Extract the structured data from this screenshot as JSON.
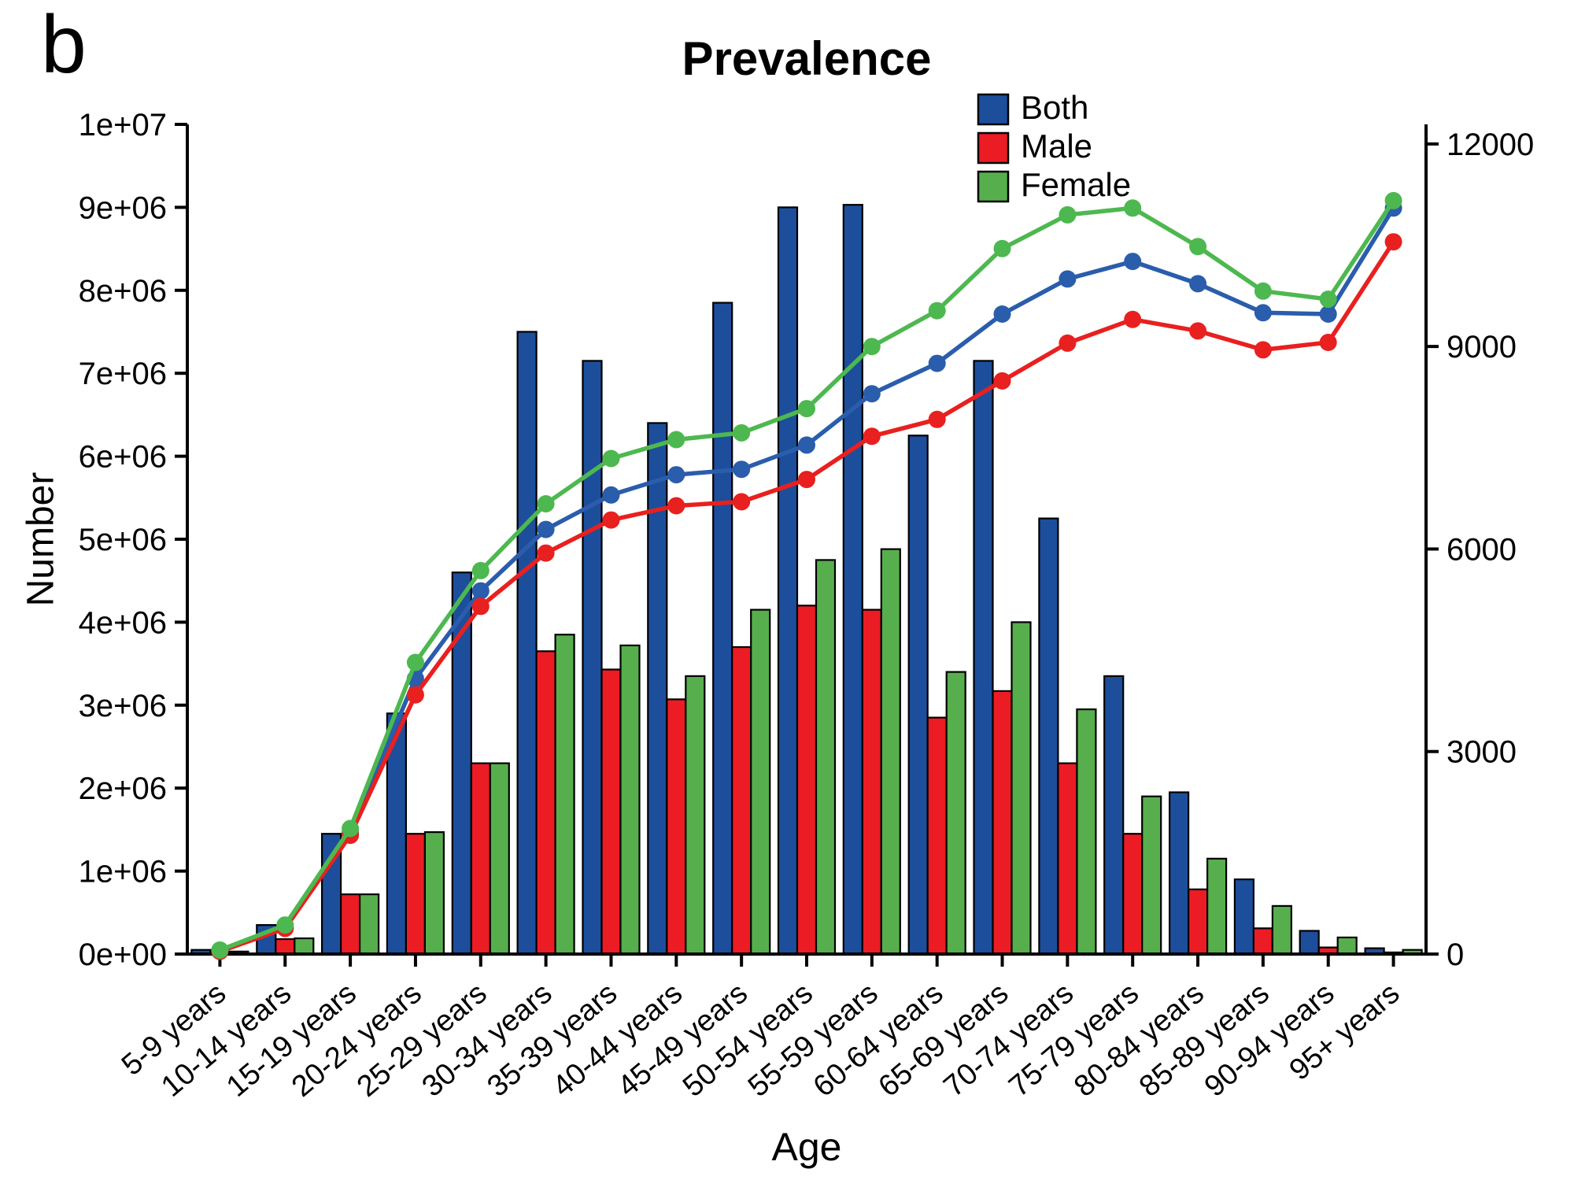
{
  "panel_label": "b",
  "chart_data": {
    "type": "bar+line",
    "title": "Prevalence",
    "xlabel": "Age",
    "ylabel_left": "Number",
    "categories": [
      "5-9 years",
      "10-14 years",
      "15-19 years",
      "20-24 years",
      "25-29 years",
      "30-34 years",
      "35-39 years",
      "40-44 years",
      "45-49 years",
      "50-54 years",
      "55-59 years",
      "60-64 years",
      "65-69 years",
      "70-74 years",
      "75-79 years",
      "80-84 years",
      "85-89 years",
      "90-94 years",
      "95+ years"
    ],
    "left_axis": {
      "min": 0,
      "max": 10000000,
      "tick_labels": [
        "0e+00",
        "1e+06",
        "2e+06",
        "3e+06",
        "4e+06",
        "5e+06",
        "6e+06",
        "7e+06",
        "8e+06",
        "9e+06",
        "1e+07"
      ],
      "tick_values": [
        0,
        1000000,
        2000000,
        3000000,
        4000000,
        5000000,
        6000000,
        7000000,
        8000000,
        9000000,
        10000000
      ]
    },
    "right_axis": {
      "min": 0,
      "max": 12000,
      "tick_labels": [
        "0",
        "3000",
        "6000",
        "9000",
        "12000"
      ],
      "tick_values": [
        0,
        3000,
        6000,
        9000,
        12000
      ]
    },
    "legend": {
      "position": "top-right",
      "entries": [
        "Both",
        "Male",
        "Female"
      ]
    },
    "bar_series": [
      {
        "name": "Both",
        "color": "#1d4e9b",
        "values": [
          50000,
          350000,
          1450000,
          2900000,
          4600000,
          7500000,
          7150000,
          6400000,
          7850000,
          9000000,
          9030000,
          6250000,
          7150000,
          5250000,
          3350000,
          1950000,
          900000,
          280000,
          70000
        ]
      },
      {
        "name": "Male",
        "color": "#ec1c24",
        "values": [
          20000,
          180000,
          720000,
          1450000,
          2300000,
          3650000,
          3430000,
          3070000,
          3700000,
          4200000,
          4150000,
          2850000,
          3170000,
          2300000,
          1450000,
          780000,
          310000,
          80000,
          20000
        ]
      },
      {
        "name": "Female",
        "color": "#57ae4d",
        "values": [
          30000,
          190000,
          720000,
          1470000,
          2300000,
          3850000,
          3720000,
          3350000,
          4150000,
          4750000,
          4880000,
          3400000,
          4000000,
          2950000,
          1900000,
          1150000,
          580000,
          200000,
          50000
        ]
      }
    ],
    "line_series": [
      {
        "name": "Both",
        "color": "#2a5dab",
        "values": [
          50,
          400,
          1800,
          4080,
          5380,
          6290,
          6800,
          7100,
          7180,
          7540,
          8300,
          8750,
          9480,
          10000,
          10260,
          9930,
          9500,
          9480,
          11050
        ]
      },
      {
        "name": "Male",
        "color": "#e8201f",
        "values": [
          40,
          380,
          1760,
          3840,
          5150,
          5940,
          6430,
          6640,
          6700,
          7030,
          7670,
          7920,
          8490,
          9050,
          9400,
          9230,
          8950,
          9060,
          10550
        ]
      },
      {
        "name": "Female",
        "color": "#4db84f",
        "values": [
          60,
          430,
          1860,
          4320,
          5680,
          6670,
          7340,
          7620,
          7720,
          8080,
          9000,
          9530,
          10450,
          10950,
          11050,
          10480,
          9820,
          9700,
          11160
        ]
      }
    ]
  }
}
